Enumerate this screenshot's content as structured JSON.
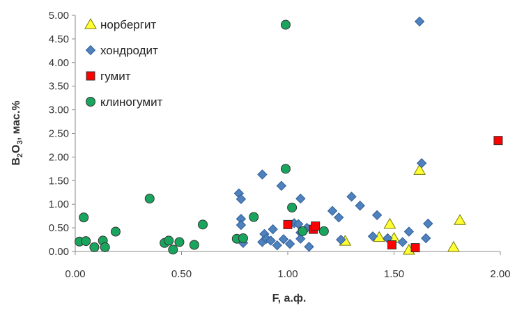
{
  "chart_data": {
    "type": "scatter",
    "xlabel": "F, а.ф.",
    "ylabel_base": "B",
    "ylabel_sub": "2",
    "ylabel_mid": "O",
    "ylabel_sub2": "3",
    "ylabel_tail": ", мас.%",
    "xlim": [
      0,
      2
    ],
    "ylim": [
      0,
      5
    ],
    "xticks": [
      "0.00",
      "0.50",
      "1.00",
      "1.50",
      "2.00"
    ],
    "xtick_values": [
      0,
      0.5,
      1.0,
      1.5,
      2.0
    ],
    "yticks": [
      "0.00",
      "0.50",
      "1.00",
      "1.50",
      "2.00",
      "2.50",
      "3.00",
      "3.50",
      "4.00",
      "4.50",
      "5.00"
    ],
    "ytick_values": [
      0,
      0.5,
      1,
      1.5,
      2,
      2.5,
      3,
      3.5,
      4,
      4.5,
      5
    ],
    "grid": false,
    "legend_position": "top-left",
    "series": [
      {
        "name": "норбергит",
        "marker": "triangle",
        "color": "#ffff33",
        "points": [
          [
            1.27,
            0.22
          ],
          [
            1.43,
            0.3
          ],
          [
            1.48,
            0.58
          ],
          [
            1.5,
            0.28
          ],
          [
            1.57,
            0.03
          ],
          [
            1.62,
            1.72
          ],
          [
            1.78,
            0.09
          ],
          [
            1.81,
            0.66
          ]
        ]
      },
      {
        "name": "хондродит",
        "marker": "diamond",
        "color": "#4f81bd",
        "points": [
          [
            0.77,
            1.23
          ],
          [
            0.78,
            1.11
          ],
          [
            0.78,
            0.69
          ],
          [
            0.78,
            0.56
          ],
          [
            0.79,
            0.18
          ],
          [
            0.88,
            1.63
          ],
          [
            0.88,
            0.2
          ],
          [
            0.89,
            0.37
          ],
          [
            0.9,
            0.27
          ],
          [
            0.92,
            0.23
          ],
          [
            0.93,
            0.47
          ],
          [
            0.95,
            0.13
          ],
          [
            0.97,
            1.39
          ],
          [
            0.98,
            0.26
          ],
          [
            1.01,
            0.16
          ],
          [
            1.03,
            0.6
          ],
          [
            1.05,
            0.58
          ],
          [
            1.06,
            1.12
          ],
          [
            1.06,
            0.4
          ],
          [
            1.06,
            0.27
          ],
          [
            1.09,
            0.5
          ],
          [
            1.1,
            0.1
          ],
          [
            1.21,
            0.86
          ],
          [
            1.24,
            0.72
          ],
          [
            1.25,
            0.25
          ],
          [
            1.3,
            1.16
          ],
          [
            1.34,
            0.97
          ],
          [
            1.4,
            0.32
          ],
          [
            1.42,
            0.77
          ],
          [
            1.47,
            0.28
          ],
          [
            1.54,
            0.2
          ],
          [
            1.57,
            0.42
          ],
          [
            1.62,
            4.87
          ],
          [
            1.63,
            1.87
          ],
          [
            1.65,
            0.28
          ],
          [
            1.66,
            0.59
          ]
        ]
      },
      {
        "name": "гумит",
        "marker": "square",
        "color": "#ff0000",
        "points": [
          [
            1.0,
            0.57
          ],
          [
            1.12,
            0.47
          ],
          [
            1.13,
            0.54
          ],
          [
            1.49,
            0.14
          ],
          [
            1.6,
            0.08
          ],
          [
            1.99,
            2.35
          ]
        ]
      },
      {
        "name": "клиногумит",
        "marker": "circle",
        "color": "#1aa55e",
        "points": [
          [
            0.02,
            0.21
          ],
          [
            0.04,
            0.72
          ],
          [
            0.05,
            0.22
          ],
          [
            0.09,
            0.09
          ],
          [
            0.13,
            0.23
          ],
          [
            0.14,
            0.09
          ],
          [
            0.19,
            0.42
          ],
          [
            0.35,
            1.12
          ],
          [
            0.42,
            0.18
          ],
          [
            0.44,
            0.23
          ],
          [
            0.46,
            0.04
          ],
          [
            0.49,
            0.2
          ],
          [
            0.56,
            0.14
          ],
          [
            0.6,
            0.57
          ],
          [
            0.76,
            0.27
          ],
          [
            0.79,
            0.28
          ],
          [
            0.84,
            0.73
          ],
          [
            0.99,
            4.8
          ],
          [
            0.99,
            1.75
          ],
          [
            1.02,
            0.93
          ],
          [
            1.07,
            0.43
          ],
          [
            1.17,
            0.43
          ]
        ]
      }
    ]
  }
}
